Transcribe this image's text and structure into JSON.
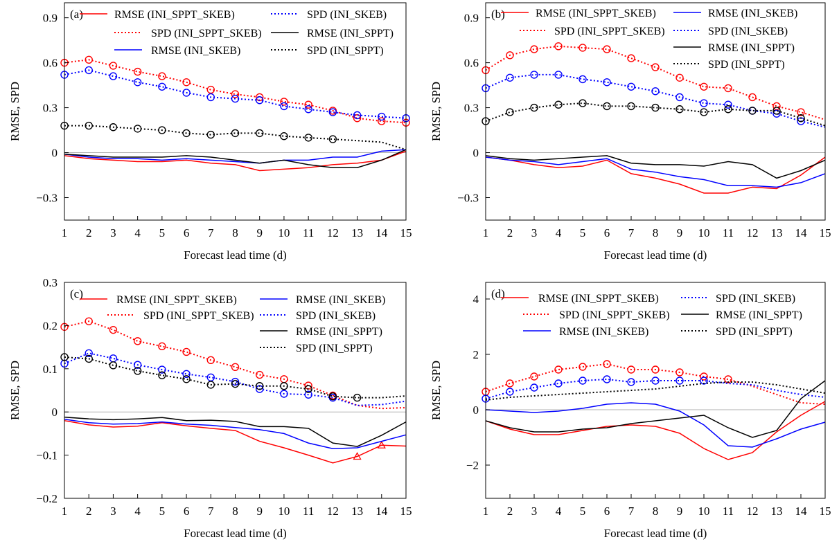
{
  "colors": {
    "INI_SPPT_SKEB": "#ff0000",
    "INI_SKEB": "#0000ff",
    "INI_SPPT": "#000000",
    "zero_line": "#b0b0b0"
  },
  "chart_data": [
    {
      "type": "line",
      "panel_label": "(a)",
      "xlabel": "Forecast lead time (d)",
      "ylabel": "RMSE, SPD",
      "xlim": [
        1,
        15
      ],
      "ylim": [
        -0.45,
        1.0
      ],
      "yticks": [
        -0.3,
        0,
        0.3,
        0.6,
        0.9
      ],
      "ytick_labels": [
        "−0.3",
        "0",
        "0.3",
        "0.6",
        "0.9"
      ],
      "x": [
        1,
        2,
        3,
        4,
        5,
        6,
        7,
        8,
        9,
        10,
        11,
        12,
        13,
        14,
        15
      ],
      "xtick_labels": [
        "1",
        "2",
        "3",
        "4",
        "5",
        "6",
        "7",
        "8",
        "9",
        "10",
        "11",
        "12",
        "13",
        "14",
        "15"
      ],
      "legend_position": "top",
      "legend_order": [
        "RMSE (INI_SPPT_SKEB)",
        "SPD (INI_SKEB)",
        "SPD (INI_SPPT_SKEB)",
        "RMSE (INI_SPPT)",
        "RMSE (INI_SKEB)",
        "SPD (INI_SPPT)"
      ],
      "series": [
        {
          "name": "RMSE (INI_SPPT_SKEB)",
          "kind": "RMSE",
          "experiment": "INI_SPPT_SKEB",
          "values": [
            -0.02,
            -0.04,
            -0.05,
            -0.06,
            -0.06,
            -0.05,
            -0.07,
            -0.08,
            -0.12,
            -0.11,
            -0.1,
            -0.08,
            -0.07,
            -0.05,
            0.01
          ]
        },
        {
          "name": "SPD (INI_SPPT_SKEB)",
          "kind": "SPD",
          "experiment": "INI_SPPT_SKEB",
          "values": [
            0.6,
            0.62,
            0.58,
            0.54,
            0.51,
            0.47,
            0.42,
            0.39,
            0.37,
            0.34,
            0.32,
            0.28,
            0.23,
            0.21,
            0.2
          ],
          "markers": [
            0,
            1,
            2,
            3,
            4,
            5,
            6,
            7,
            8,
            9,
            10,
            11,
            12,
            13,
            14
          ]
        },
        {
          "name": "RMSE (INI_SKEB)",
          "kind": "RMSE",
          "experiment": "INI_SKEB",
          "values": [
            -0.01,
            -0.03,
            -0.04,
            -0.04,
            -0.05,
            -0.04,
            -0.05,
            -0.06,
            -0.07,
            -0.05,
            -0.05,
            -0.03,
            -0.03,
            0.01,
            0.02
          ]
        },
        {
          "name": "SPD (INI_SKEB)",
          "kind": "SPD",
          "experiment": "INI_SKEB",
          "values": [
            0.52,
            0.55,
            0.51,
            0.47,
            0.44,
            0.4,
            0.37,
            0.36,
            0.35,
            0.31,
            0.29,
            0.27,
            0.25,
            0.24,
            0.23
          ],
          "markers": [
            0,
            1,
            2,
            3,
            4,
            5,
            6,
            7,
            8,
            9,
            10,
            11,
            12,
            13,
            14
          ]
        },
        {
          "name": "RMSE (INI_SPPT)",
          "kind": "RMSE",
          "experiment": "INI_SPPT",
          "values": [
            -0.01,
            -0.02,
            -0.03,
            -0.03,
            -0.03,
            -0.02,
            -0.03,
            -0.05,
            -0.07,
            -0.05,
            -0.08,
            -0.1,
            -0.1,
            -0.05,
            0.02
          ]
        },
        {
          "name": "SPD (INI_SPPT)",
          "kind": "SPD",
          "experiment": "INI_SPPT",
          "values": [
            0.18,
            0.18,
            0.17,
            0.16,
            0.15,
            0.13,
            0.12,
            0.13,
            0.13,
            0.11,
            0.1,
            0.09,
            0.08,
            0.07,
            0.02
          ],
          "markers": [
            0,
            1,
            2,
            3,
            4,
            5,
            6,
            7,
            8,
            9,
            10,
            11
          ]
        }
      ]
    },
    {
      "type": "line",
      "panel_label": "(b)",
      "xlabel": "Forecast lead time (d)",
      "ylabel": "RMSE, SPD",
      "xlim": [
        1,
        15
      ],
      "ylim": [
        -0.45,
        1.0
      ],
      "yticks": [
        -0.3,
        0,
        0.3,
        0.6,
        0.9
      ],
      "ytick_labels": [
        "−0.3",
        "0",
        "0.3",
        "0.6",
        "0.9"
      ],
      "x": [
        1,
        2,
        3,
        4,
        5,
        6,
        7,
        8,
        9,
        10,
        11,
        12,
        13,
        14,
        15
      ],
      "xtick_labels": [
        "1",
        "2",
        "3",
        "4",
        "5",
        "6",
        "7",
        "8",
        "9",
        "10",
        "11",
        "12",
        "13",
        "14",
        "15"
      ],
      "legend_position": "top",
      "legend_order": [
        "RMSE (INI_SPPT_SKEB)",
        "RMSE (INI_SKEB)",
        "SPD (INI_SPPT_SKEB)",
        "SPD (INI_SKEB)",
        "RMSE (INI_SPPT)",
        "SPD (INI_SPPT)"
      ],
      "series": [
        {
          "name": "RMSE (INI_SPPT_SKEB)",
          "kind": "RMSE",
          "experiment": "INI_SPPT_SKEB",
          "values": [
            -0.03,
            -0.05,
            -0.08,
            -0.1,
            -0.09,
            -0.05,
            -0.14,
            -0.17,
            -0.21,
            -0.27,
            -0.27,
            -0.23,
            -0.24,
            -0.15,
            -0.03
          ]
        },
        {
          "name": "SPD (INI_SPPT_SKEB)",
          "kind": "SPD",
          "experiment": "INI_SPPT_SKEB",
          "values": [
            0.55,
            0.65,
            0.69,
            0.71,
            0.7,
            0.69,
            0.63,
            0.57,
            0.5,
            0.44,
            0.43,
            0.37,
            0.31,
            0.27,
            0.22
          ],
          "markers": [
            0,
            1,
            2,
            3,
            4,
            5,
            6,
            7,
            8,
            9,
            10,
            11,
            12,
            13
          ]
        },
        {
          "name": "RMSE (INI_SKEB)",
          "kind": "RMSE",
          "experiment": "INI_SKEB",
          "values": [
            -0.03,
            -0.05,
            -0.06,
            -0.08,
            -0.06,
            -0.04,
            -0.11,
            -0.13,
            -0.16,
            -0.18,
            -0.22,
            -0.22,
            -0.23,
            -0.2,
            -0.14
          ]
        },
        {
          "name": "SPD (INI_SKEB)",
          "kind": "SPD",
          "experiment": "INI_SKEB",
          "values": [
            0.43,
            0.5,
            0.52,
            0.52,
            0.49,
            0.47,
            0.44,
            0.41,
            0.37,
            0.33,
            0.32,
            0.28,
            0.26,
            0.21,
            0.17
          ],
          "markers": [
            0,
            1,
            2,
            3,
            4,
            5,
            6,
            7,
            8,
            9,
            10,
            11,
            12,
            13
          ]
        },
        {
          "name": "RMSE (INI_SPPT)",
          "kind": "RMSE",
          "experiment": "INI_SPPT",
          "values": [
            -0.02,
            -0.04,
            -0.05,
            -0.04,
            -0.03,
            -0.02,
            -0.07,
            -0.08,
            -0.08,
            -0.09,
            -0.06,
            -0.08,
            -0.17,
            -0.12,
            -0.05
          ]
        },
        {
          "name": "SPD (INI_SPPT)",
          "kind": "SPD",
          "experiment": "INI_SPPT",
          "values": [
            0.21,
            0.27,
            0.3,
            0.32,
            0.33,
            0.31,
            0.31,
            0.3,
            0.29,
            0.27,
            0.29,
            0.28,
            0.28,
            0.23,
            0.18
          ],
          "markers": [
            0,
            1,
            2,
            3,
            4,
            5,
            6,
            7,
            8,
            9,
            10,
            11,
            12,
            13
          ]
        }
      ]
    },
    {
      "type": "line",
      "panel_label": "(c)",
      "xlabel": "Forecast lead time (d)",
      "ylabel": "RMSE, SPD",
      "xlim": [
        1,
        15
      ],
      "ylim": [
        -0.2,
        0.3
      ],
      "yticks": [
        -0.2,
        -0.1,
        0,
        0.1,
        0.2,
        0.3
      ],
      "ytick_labels": [
        "−0.2",
        "−0.1",
        "0",
        "0.1",
        "0.2",
        "0.3"
      ],
      "x": [
        1,
        2,
        3,
        4,
        5,
        6,
        7,
        8,
        9,
        10,
        11,
        12,
        13,
        14,
        15
      ],
      "xtick_labels": [
        "1",
        "2",
        "3",
        "4",
        "5",
        "6",
        "7",
        "8",
        "9",
        "10",
        "11",
        "12",
        "13",
        "14",
        "15"
      ],
      "legend_position": "top",
      "legend_order": [
        "RMSE (INI_SPPT_SKEB)",
        "RMSE (INI_SKEB)",
        "SPD (INI_SPPT_SKEB)",
        "SPD (INI_SKEB)",
        "RMSE (INI_SPPT)",
        "SPD (INI_SPPT)"
      ],
      "series": [
        {
          "name": "RMSE (INI_SPPT_SKEB)",
          "kind": "RMSE",
          "experiment": "INI_SPPT_SKEB",
          "values": [
            -0.02,
            -0.03,
            -0.035,
            -0.033,
            -0.025,
            -0.032,
            -0.038,
            -0.043,
            -0.068,
            -0.083,
            -0.1,
            -0.118,
            -0.103,
            -0.077,
            -0.079
          ],
          "triangles": [
            12,
            13
          ]
        },
        {
          "name": "SPD (INI_SPPT_SKEB)",
          "kind": "SPD",
          "experiment": "INI_SPPT_SKEB",
          "values": [
            0.197,
            0.21,
            0.19,
            0.164,
            0.152,
            0.139,
            0.12,
            0.104,
            0.086,
            0.076,
            0.061,
            0.038,
            0.015,
            0.008,
            0.01
          ],
          "markers": [
            0,
            1,
            2,
            3,
            4,
            5,
            6,
            7,
            8,
            9,
            10,
            11
          ]
        },
        {
          "name": "RMSE (INI_SKEB)",
          "kind": "RMSE",
          "experiment": "INI_SKEB",
          "values": [
            -0.017,
            -0.025,
            -0.028,
            -0.027,
            -0.023,
            -0.028,
            -0.031,
            -0.036,
            -0.041,
            -0.05,
            -0.072,
            -0.085,
            -0.083,
            -0.068,
            -0.053
          ]
        },
        {
          "name": "SPD (INI_SKEB)",
          "kind": "SPD",
          "experiment": "INI_SKEB",
          "values": [
            0.112,
            0.136,
            0.124,
            0.109,
            0.098,
            0.088,
            0.08,
            0.07,
            0.053,
            0.042,
            0.04,
            0.033,
            0.015,
            0.017,
            0.025
          ],
          "markers": [
            0,
            1,
            2,
            3,
            4,
            5,
            6,
            7,
            8,
            9,
            10,
            11
          ]
        },
        {
          "name": "RMSE (INI_SPPT)",
          "kind": "RMSE",
          "experiment": "INI_SPPT",
          "values": [
            -0.012,
            -0.016,
            -0.018,
            -0.016,
            -0.013,
            -0.02,
            -0.019,
            -0.022,
            -0.034,
            -0.034,
            -0.038,
            -0.072,
            -0.08,
            -0.054,
            -0.023
          ]
        },
        {
          "name": "SPD (INI_SPPT)",
          "kind": "SPD",
          "experiment": "INI_SPPT",
          "values": [
            0.127,
            0.123,
            0.108,
            0.095,
            0.085,
            0.076,
            0.063,
            0.065,
            0.06,
            0.06,
            0.053,
            0.036,
            0.033,
            0.033,
            0.037
          ],
          "markers": [
            0,
            1,
            2,
            3,
            4,
            5,
            6,
            7,
            8,
            9,
            10,
            11,
            12
          ]
        }
      ]
    },
    {
      "type": "line",
      "panel_label": "(d)",
      "xlabel": "Forecast lead time (d)",
      "ylabel": "RMSE, SPD",
      "xlim": [
        1,
        15
      ],
      "ylim": [
        -3.2,
        4.6
      ],
      "yticks": [
        -2,
        0,
        2,
        4
      ],
      "ytick_labels": [
        "−2",
        "0",
        "2",
        "4"
      ],
      "x": [
        1,
        2,
        3,
        4,
        5,
        6,
        7,
        8,
        9,
        10,
        11,
        12,
        13,
        14,
        15
      ],
      "xtick_labels": [
        "1",
        "2",
        "3",
        "4",
        "5",
        "6",
        "7",
        "8",
        "9",
        "10",
        "11",
        "12",
        "13",
        "14",
        "15"
      ],
      "legend_position": "top",
      "legend_order": [
        "RMSE (INI_SPPT_SKEB)",
        "SPD (INI_SKEB)",
        "SPD (INI_SPPT_SKEB)",
        "RMSE (INI_SPPT)",
        "RMSE (INI_SKEB)",
        "SPD (INI_SPPT)"
      ],
      "series": [
        {
          "name": "RMSE (INI_SPPT_SKEB)",
          "kind": "RMSE",
          "experiment": "INI_SPPT_SKEB",
          "values": [
            -0.4,
            -0.7,
            -0.9,
            -0.9,
            -0.75,
            -0.6,
            -0.55,
            -0.6,
            -0.85,
            -1.4,
            -1.8,
            -1.55,
            -0.8,
            -0.2,
            0.3
          ]
        },
        {
          "name": "SPD (INI_SPPT_SKEB)",
          "kind": "SPD",
          "experiment": "INI_SPPT_SKEB",
          "values": [
            0.65,
            0.95,
            1.2,
            1.45,
            1.55,
            1.65,
            1.45,
            1.45,
            1.35,
            1.2,
            1.1,
            0.85,
            0.55,
            0.25,
            0.2
          ],
          "markers": [
            0,
            1,
            2,
            3,
            4,
            5,
            6,
            7,
            8,
            9,
            10
          ]
        },
        {
          "name": "RMSE (INI_SKEB)",
          "kind": "RMSE",
          "experiment": "INI_SKEB",
          "values": [
            0.0,
            -0.05,
            -0.1,
            -0.05,
            0.05,
            0.2,
            0.25,
            0.2,
            -0.05,
            -0.55,
            -1.3,
            -1.35,
            -1.05,
            -0.7,
            -0.45
          ]
        },
        {
          "name": "SPD (INI_SKEB)",
          "kind": "SPD",
          "experiment": "INI_SKEB",
          "values": [
            0.4,
            0.65,
            0.8,
            0.95,
            1.05,
            1.1,
            1.0,
            1.05,
            1.05,
            1.05,
            0.95,
            0.9,
            0.7,
            0.55,
            0.45
          ],
          "markers": [
            0,
            1,
            2,
            3,
            4,
            5,
            6,
            7,
            8,
            9
          ]
        },
        {
          "name": "RMSE (INI_SPPT)",
          "kind": "RMSE",
          "experiment": "INI_SPPT",
          "values": [
            -0.4,
            -0.65,
            -0.8,
            -0.8,
            -0.7,
            -0.65,
            -0.5,
            -0.4,
            -0.3,
            -0.2,
            -0.65,
            -1.0,
            -0.75,
            0.4,
            1.05
          ]
        },
        {
          "name": "SPD (INI_SPPT)",
          "kind": "SPD",
          "experiment": "INI_SPPT",
          "values": [
            0.35,
            0.45,
            0.5,
            0.55,
            0.6,
            0.65,
            0.7,
            0.75,
            0.85,
            0.95,
            1.0,
            1.0,
            0.9,
            0.75,
            0.6
          ],
          "markers": []
        }
      ]
    }
  ]
}
